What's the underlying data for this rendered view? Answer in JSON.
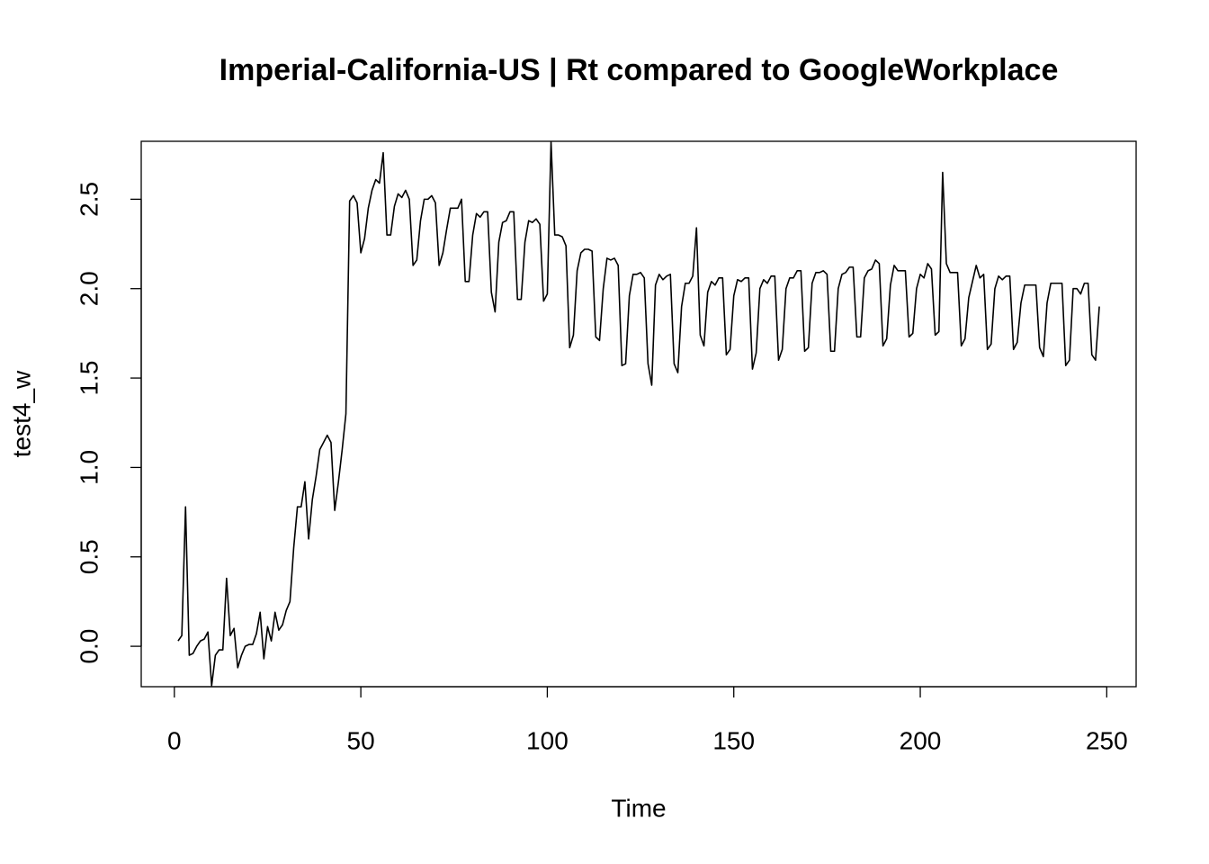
{
  "chart_data": {
    "type": "line",
    "title": "Imperial-California-US | Rt compared to GoogleWorkplace",
    "xlabel": "Time",
    "ylabel": "test4_w",
    "x": [
      1,
      2,
      3,
      4,
      5,
      6,
      7,
      8,
      9,
      10,
      11,
      12,
      13,
      14,
      15,
      16,
      17,
      18,
      19,
      20,
      21,
      22,
      23,
      24,
      25,
      26,
      27,
      28,
      29,
      30,
      31,
      32,
      33,
      34,
      35,
      36,
      37,
      38,
      39,
      40,
      41,
      42,
      43,
      44,
      45,
      46,
      47,
      48,
      49,
      50,
      51,
      52,
      53,
      54,
      55,
      56,
      57,
      58,
      59,
      60,
      61,
      62,
      63,
      64,
      65,
      66,
      67,
      68,
      69,
      70,
      71,
      72,
      73,
      74,
      75,
      76,
      77,
      78,
      79,
      80,
      81,
      82,
      83,
      84,
      85,
      86,
      87,
      88,
      89,
      90,
      91,
      92,
      93,
      94,
      95,
      96,
      97,
      98,
      99,
      100,
      101,
      102,
      103,
      104,
      105,
      106,
      107,
      108,
      109,
      110,
      111,
      112,
      113,
      114,
      115,
      116,
      117,
      118,
      119,
      120,
      121,
      122,
      123,
      124,
      125,
      126,
      127,
      128,
      129,
      130,
      131,
      132,
      133,
      134,
      135,
      136,
      137,
      138,
      139,
      140,
      141,
      142,
      143,
      144,
      145,
      146,
      147,
      148,
      149,
      150,
      151,
      152,
      153,
      154,
      155,
      156,
      157,
      158,
      159,
      160,
      161,
      162,
      163,
      164,
      165,
      166,
      167,
      168,
      169,
      170,
      171,
      172,
      173,
      174,
      175,
      176,
      177,
      178,
      179,
      180,
      181,
      182,
      183,
      184,
      185,
      186,
      187,
      188,
      189,
      190,
      191,
      192,
      193,
      194,
      195,
      196,
      197,
      198,
      199,
      200,
      201,
      202,
      203,
      204,
      205,
      206,
      207,
      208,
      209,
      210,
      211,
      212,
      213,
      214,
      215,
      216,
      217,
      218,
      219,
      220,
      221,
      222,
      223,
      224,
      225,
      226,
      227,
      228,
      229,
      230,
      231,
      232,
      233,
      234,
      235,
      236,
      237,
      238,
      239,
      240,
      241,
      242,
      243,
      244,
      245,
      246,
      247,
      248
    ],
    "series": [
      {
        "name": "test4_w",
        "color": "#000000",
        "values": [
          0.03,
          0.06,
          0.78,
          -0.05,
          -0.04,
          0.0,
          0.03,
          0.04,
          0.08,
          -0.22,
          -0.05,
          -0.02,
          -0.02,
          0.38,
          0.06,
          0.1,
          -0.12,
          -0.05,
          0.0,
          0.01,
          0.01,
          0.07,
          0.19,
          -0.07,
          0.11,
          0.03,
          0.19,
          0.09,
          0.12,
          0.2,
          0.25,
          0.55,
          0.78,
          0.78,
          0.92,
          0.6,
          0.82,
          0.95,
          1.1,
          1.14,
          1.18,
          1.14,
          0.76,
          0.92,
          1.1,
          1.3,
          2.49,
          2.52,
          2.48,
          2.2,
          2.28,
          2.45,
          2.55,
          2.61,
          2.59,
          2.76,
          2.3,
          2.3,
          2.46,
          2.53,
          2.51,
          2.55,
          2.5,
          2.13,
          2.16,
          2.38,
          2.5,
          2.5,
          2.52,
          2.48,
          2.13,
          2.2,
          2.33,
          2.45,
          2.45,
          2.45,
          2.5,
          2.04,
          2.04,
          2.3,
          2.42,
          2.4,
          2.43,
          2.43,
          1.98,
          1.87,
          2.26,
          2.37,
          2.38,
          2.43,
          2.43,
          1.94,
          1.94,
          2.26,
          2.38,
          2.37,
          2.39,
          2.36,
          1.93,
          1.97,
          2.82,
          2.3,
          2.3,
          2.29,
          2.24,
          1.67,
          1.74,
          2.1,
          2.2,
          2.22,
          2.22,
          2.21,
          1.73,
          1.71,
          2.0,
          2.17,
          2.16,
          2.17,
          2.13,
          1.57,
          1.58,
          1.96,
          2.08,
          2.08,
          2.09,
          2.06,
          1.58,
          1.46,
          2.02,
          2.08,
          2.05,
          2.07,
          2.08,
          1.58,
          1.53,
          1.9,
          2.03,
          2.03,
          2.07,
          2.34,
          1.74,
          1.68,
          1.98,
          2.04,
          2.02,
          2.06,
          2.06,
          1.63,
          1.66,
          1.96,
          2.05,
          2.04,
          2.06,
          2.06,
          1.55,
          1.64,
          2.0,
          2.05,
          2.03,
          2.07,
          2.07,
          1.6,
          1.66,
          2.0,
          2.06,
          2.06,
          2.1,
          2.1,
          1.65,
          1.67,
          2.03,
          2.09,
          2.09,
          2.1,
          2.08,
          1.65,
          1.65,
          2.0,
          2.08,
          2.09,
          2.12,
          2.12,
          1.73,
          1.73,
          2.06,
          2.1,
          2.11,
          2.16,
          2.14,
          1.68,
          1.72,
          2.02,
          2.13,
          2.1,
          2.1,
          2.1,
          1.73,
          1.75,
          2.0,
          2.08,
          2.06,
          2.14,
          2.11,
          1.74,
          1.76,
          2.65,
          2.14,
          2.09,
          2.09,
          2.09,
          1.68,
          1.72,
          1.95,
          2.04,
          2.13,
          2.06,
          2.08,
          1.66,
          1.69,
          2.0,
          2.07,
          2.05,
          2.07,
          2.07,
          1.66,
          1.7,
          1.92,
          2.02,
          2.02,
          2.02,
          2.02,
          1.67,
          1.62,
          1.92,
          2.03,
          2.03,
          2.03,
          2.03,
          1.57,
          1.6,
          2.0,
          2.0,
          1.97,
          2.03,
          2.03,
          1.63,
          1.6,
          1.9
        ]
      }
    ],
    "xlim": [
      -8.88,
      257.88
    ],
    "xticks": [
      0,
      50,
      100,
      150,
      200,
      250
    ],
    "ylim": [
      -0.226,
      2.824
    ],
    "yticks": [
      {
        "value": 0,
        "label": "0.0"
      },
      0.5,
      {
        "value": 1,
        "label": "1.0"
      },
      1.5,
      {
        "value": 2,
        "label": "2.0"
      },
      2.5
    ],
    "grid": false
  }
}
